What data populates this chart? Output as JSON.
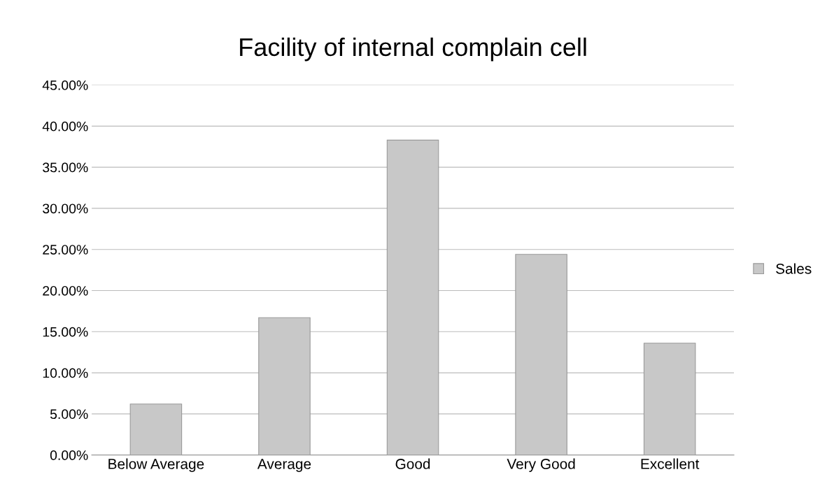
{
  "chart_data": {
    "type": "bar",
    "title": "Facility of internal complain cell",
    "categories": [
      "Below Average",
      "Average",
      "Good",
      "Very Good",
      "Excellent"
    ],
    "series": [
      {
        "name": "Sales",
        "color": "#c8c8c8",
        "values": [
          6.2,
          16.7,
          38.3,
          24.4,
          13.6
        ]
      }
    ],
    "ylim": [
      0,
      45
    ],
    "yticks": [
      {
        "value": 0,
        "label": "0.00%"
      },
      {
        "value": 5,
        "label": "5.00%"
      },
      {
        "value": 10,
        "label": "10.00%"
      },
      {
        "value": 15,
        "label": "15.00%"
      },
      {
        "value": 20,
        "label": "20.00%"
      },
      {
        "value": 25,
        "label": "25.00%"
      },
      {
        "value": 30,
        "label": "30.00%"
      },
      {
        "value": 35,
        "label": "35.00%"
      },
      {
        "value": 40,
        "label": "40.00%"
      },
      {
        "value": 45,
        "label": "45.00%"
      }
    ],
    "grid": "y",
    "legend": "right"
  }
}
